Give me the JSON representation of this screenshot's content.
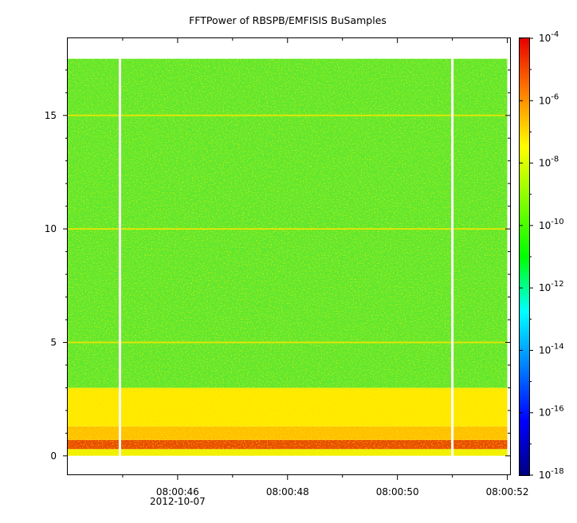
{
  "chart_data": {
    "type": "heatmap",
    "title": "FFTPower of RBSPB/EMFISIS  BuSamples",
    "xlabel": "",
    "ylabel": "",
    "x_ticks": [
      {
        "value": 46,
        "label": "08:00:46"
      },
      {
        "value": 48,
        "label": "08:00:48"
      },
      {
        "value": 50,
        "label": "08:00:50"
      },
      {
        "value": 52,
        "label": "08:00:52"
      }
    ],
    "x_date_label": "2012-10-07",
    "x_minor_ticks": [
      45,
      47,
      49,
      51
    ],
    "xlim_seconds_after_08_00": [
      44.0,
      52.05
    ],
    "data_x_range_seconds": [
      44.0,
      52.0
    ],
    "gap_times_seconds": [
      44.95,
      51.0
    ],
    "y_ticks": [
      0,
      5,
      10,
      15
    ],
    "ylim": [
      -0.85,
      18.4
    ],
    "data_y_range": [
      0,
      17.5
    ],
    "colorbar": {
      "scale": "log",
      "range": [
        1e-18,
        0.0001
      ],
      "tick_exponents": [
        -4,
        -6,
        -8,
        -10,
        -12,
        -14,
        -16,
        -18
      ],
      "colors": [
        "#00007f",
        "#0000ff",
        "#0080ff",
        "#00ffff",
        "#00ff00",
        "#ffff00",
        "#ff8000",
        "#ff0000",
        "#e60000"
      ]
    },
    "bands": [
      {
        "y_from": 0.0,
        "y_to": 0.3,
        "level": "1e-8",
        "color": "#f0f000"
      },
      {
        "y_from": 0.3,
        "y_to": 0.7,
        "level": "1e-7 to 1e-6",
        "color": "#e84a00"
      },
      {
        "y_from": 0.7,
        "y_to": 1.3,
        "level": "1e-8 to 1e-7",
        "color": "#ffbf00"
      },
      {
        "y_from": 1.3,
        "y_to": 3.0,
        "level": "1e-8 to 1e-9",
        "color": "#ffe800"
      },
      {
        "y_from": 3.0,
        "y_to": 17.5,
        "level": "1e-10 to 1e-9",
        "color": "#5fe630"
      }
    ],
    "harmonic_lines": [
      5,
      10,
      15
    ],
    "grid": false
  }
}
